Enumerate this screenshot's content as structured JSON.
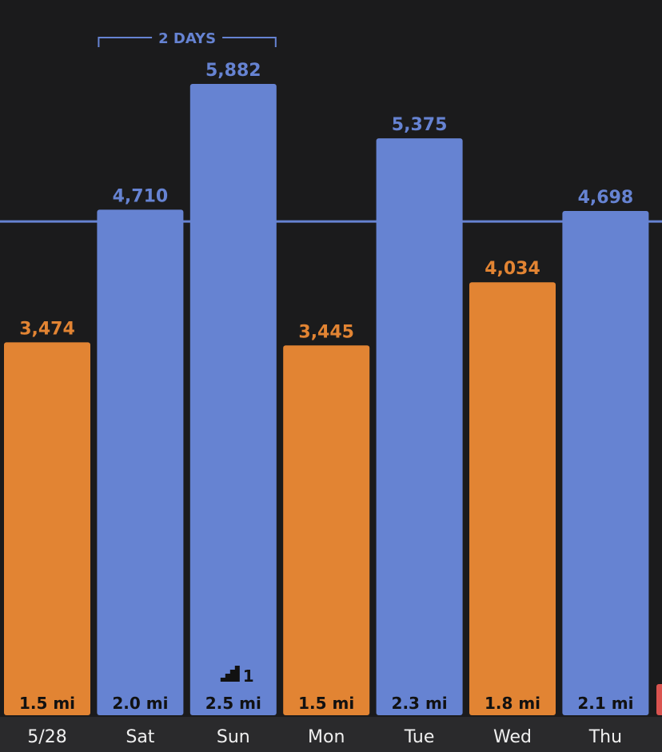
{
  "colors": {
    "background": "#1b1b1c",
    "bottom_bar": "#2a2a2c",
    "goal_met": "#6683d2",
    "goal_missed": "#e28433",
    "next_bar": "#d9534f",
    "goal_line": "#6683d2",
    "label_text": "#f0f0f0",
    "dist_text": "#111111"
  },
  "chart_data": {
    "type": "bar",
    "categories": [
      "5/28",
      "Sat",
      "Sun",
      "Mon",
      "Tue",
      "Wed",
      "Thu"
    ],
    "values": [
      3474,
      4710,
      5882,
      3445,
      5375,
      4034,
      4698
    ],
    "value_labels": [
      "3,474",
      "4,710",
      "5,882",
      "3,445",
      "5,375",
      "4,034",
      "4,698"
    ],
    "distances": [
      "1.5 mi",
      "2.0 mi",
      "2.5 mi",
      "1.5 mi",
      "2.3 mi",
      "1.8 mi",
      "2.1 mi"
    ],
    "goal_met": [
      false,
      true,
      true,
      false,
      true,
      false,
      true
    ],
    "goal_line": 4600,
    "ylim": [
      0,
      6300
    ],
    "streak": {
      "label": "2 DAYS",
      "from_index": 1,
      "to_index": 2
    },
    "badge": {
      "bar_index": 2,
      "value": "1",
      "icon": "stairs-icon"
    },
    "partial_next_bar": true,
    "grid": false
  }
}
